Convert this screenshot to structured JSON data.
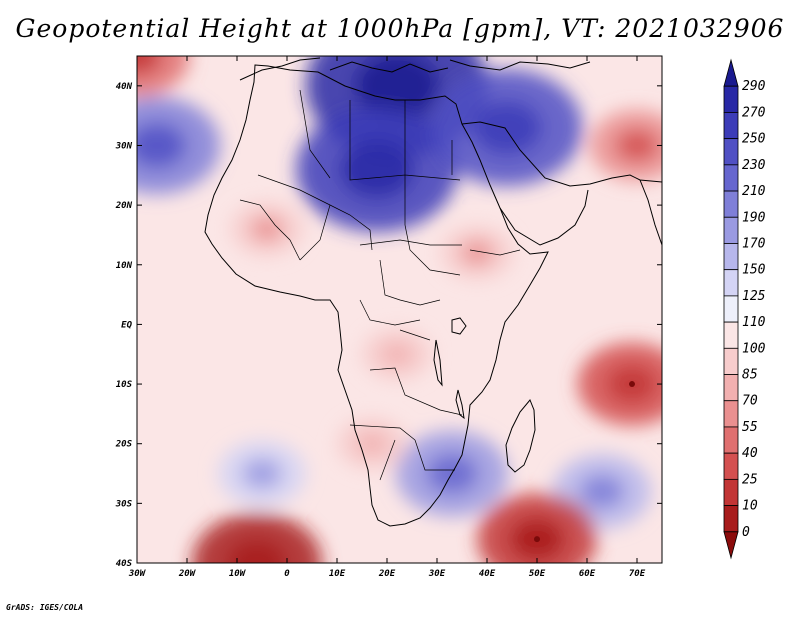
{
  "title": "Geopotential Height at 1000hPa [gpm], VT: 2021032906",
  "credit": "GrADS: IGES/COLA",
  "map": {
    "variable": "Geopotential Height at 1000hPa",
    "units": "gpm",
    "valid_time": "2021032906",
    "lon_range": [
      -30,
      75
    ],
    "lat_range": [
      -40,
      45
    ],
    "lon_ticks": [
      {
        "lon": -30,
        "label": "30W"
      },
      {
        "lon": -20,
        "label": "20W"
      },
      {
        "lon": -10,
        "label": "10W"
      },
      {
        "lon": 0,
        "label": "0"
      },
      {
        "lon": 10,
        "label": "10E"
      },
      {
        "lon": 20,
        "label": "20E"
      },
      {
        "lon": 30,
        "label": "30E"
      },
      {
        "lon": 40,
        "label": "40E"
      },
      {
        "lon": 50,
        "label": "50E"
      },
      {
        "lon": 60,
        "label": "60E"
      },
      {
        "lon": 70,
        "label": "70E"
      }
    ],
    "lat_ticks": [
      {
        "lat": 40,
        "label": "40N"
      },
      {
        "lat": 30,
        "label": "30N"
      },
      {
        "lat": 20,
        "label": "20N"
      },
      {
        "lat": 10,
        "label": "10N"
      },
      {
        "lat": 0,
        "label": "EQ"
      },
      {
        "lat": -10,
        "label": "10S"
      },
      {
        "lat": -20,
        "label": "20S"
      },
      {
        "lat": -30,
        "label": "30S"
      },
      {
        "lat": -40,
        "label": "40S"
      }
    ],
    "pressure_systems": [
      {
        "name": "high-over-north-africa-mediterranean",
        "lon": 22,
        "lat": 40,
        "value": 280
      },
      {
        "name": "high-over-libya-egypt",
        "lon": 18,
        "lat": 26,
        "value": 250
      },
      {
        "name": "high-over-arabia",
        "lon": 44,
        "lat": 33,
        "value": 235
      },
      {
        "name": "high-over-southeast-africa",
        "lon": 33,
        "lat": -25,
        "value": 180
      },
      {
        "name": "high-over-south-atlantic",
        "lon": -5,
        "lat": -25,
        "value": 145
      },
      {
        "name": "high-over-southwest-indian-ocean",
        "lon": 63,
        "lat": -28,
        "value": 160
      },
      {
        "name": "high-over-north-atlantic",
        "lon": -26,
        "lat": 30,
        "value": 200
      },
      {
        "name": "low-southwest-of-cape",
        "lon": -6,
        "lat": -40,
        "value": 5
      },
      {
        "name": "low-southeast-of-madagascar",
        "lon": 50,
        "lat": -36,
        "value": 20
      },
      {
        "name": "low-indian-ocean-cyclone",
        "lon": 69,
        "lat": -10,
        "value": 35
      },
      {
        "name": "low-over-pakistan",
        "lon": 70,
        "lat": 30,
        "value": 55
      },
      {
        "name": "low-over-sahel",
        "lon": -4,
        "lat": 16,
        "value": 85
      },
      {
        "name": "low-over-sudan-ethiopia",
        "lon": 38,
        "lat": 12,
        "value": 85
      },
      {
        "name": "low-over-central-africa",
        "lon": 22,
        "lat": -5,
        "value": 90
      },
      {
        "name": "low-over-angola-namibia",
        "lon": 17,
        "lat": -20,
        "value": 90
      },
      {
        "name": "low-northwest-atlantic-corner",
        "lon": -30,
        "lat": 45,
        "value": 40
      }
    ]
  },
  "colorbar": {
    "levels": [
      "290",
      "270",
      "250",
      "230",
      "210",
      "190",
      "170",
      "150",
      "125",
      "110",
      "100",
      "85",
      "70",
      "55",
      "40",
      "25",
      "10",
      "0"
    ],
    "colors": [
      "#1a1a8f",
      "#2828a6",
      "#3c3cb8",
      "#5050c4",
      "#6666cf",
      "#7f7fd8",
      "#9a9ae2",
      "#b7b7ec",
      "#d4d4f5",
      "#eef0fb",
      "#fbe6e6",
      "#f7cccc",
      "#f2b0b0",
      "#ea9090",
      "#e07070",
      "#d45050",
      "#c23535",
      "#a81c1c",
      "#8b0c0c"
    ]
  }
}
